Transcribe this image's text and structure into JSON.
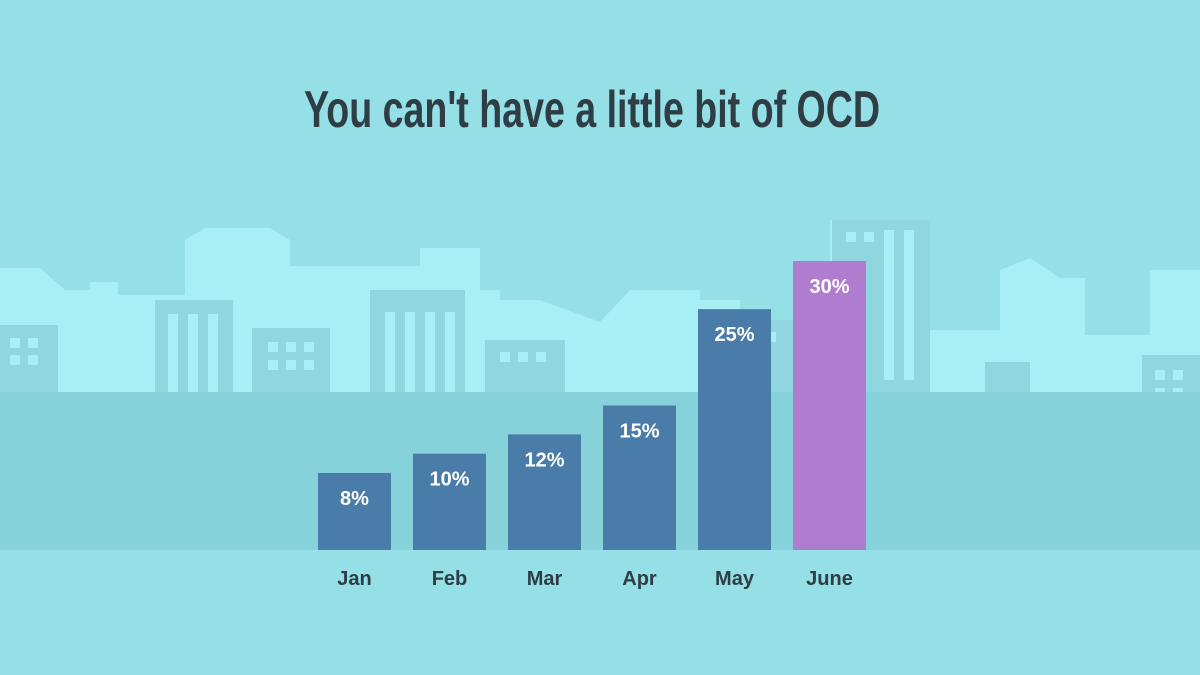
{
  "chart_data": {
    "type": "bar",
    "title": "You can't have a little bit of OCD",
    "categories": [
      "Jan",
      "Feb",
      "Mar",
      "Apr",
      "May",
      "June"
    ],
    "values": [
      8,
      10,
      12,
      15,
      25,
      30
    ],
    "value_labels": [
      "8%",
      "10%",
      "12%",
      "15%",
      "25%",
      "30%"
    ],
    "colors": [
      "#4a7ca9",
      "#4a7ca9",
      "#4a7ca9",
      "#4a7ca9",
      "#4a7ca9",
      "#b07ccf"
    ]
  }
}
